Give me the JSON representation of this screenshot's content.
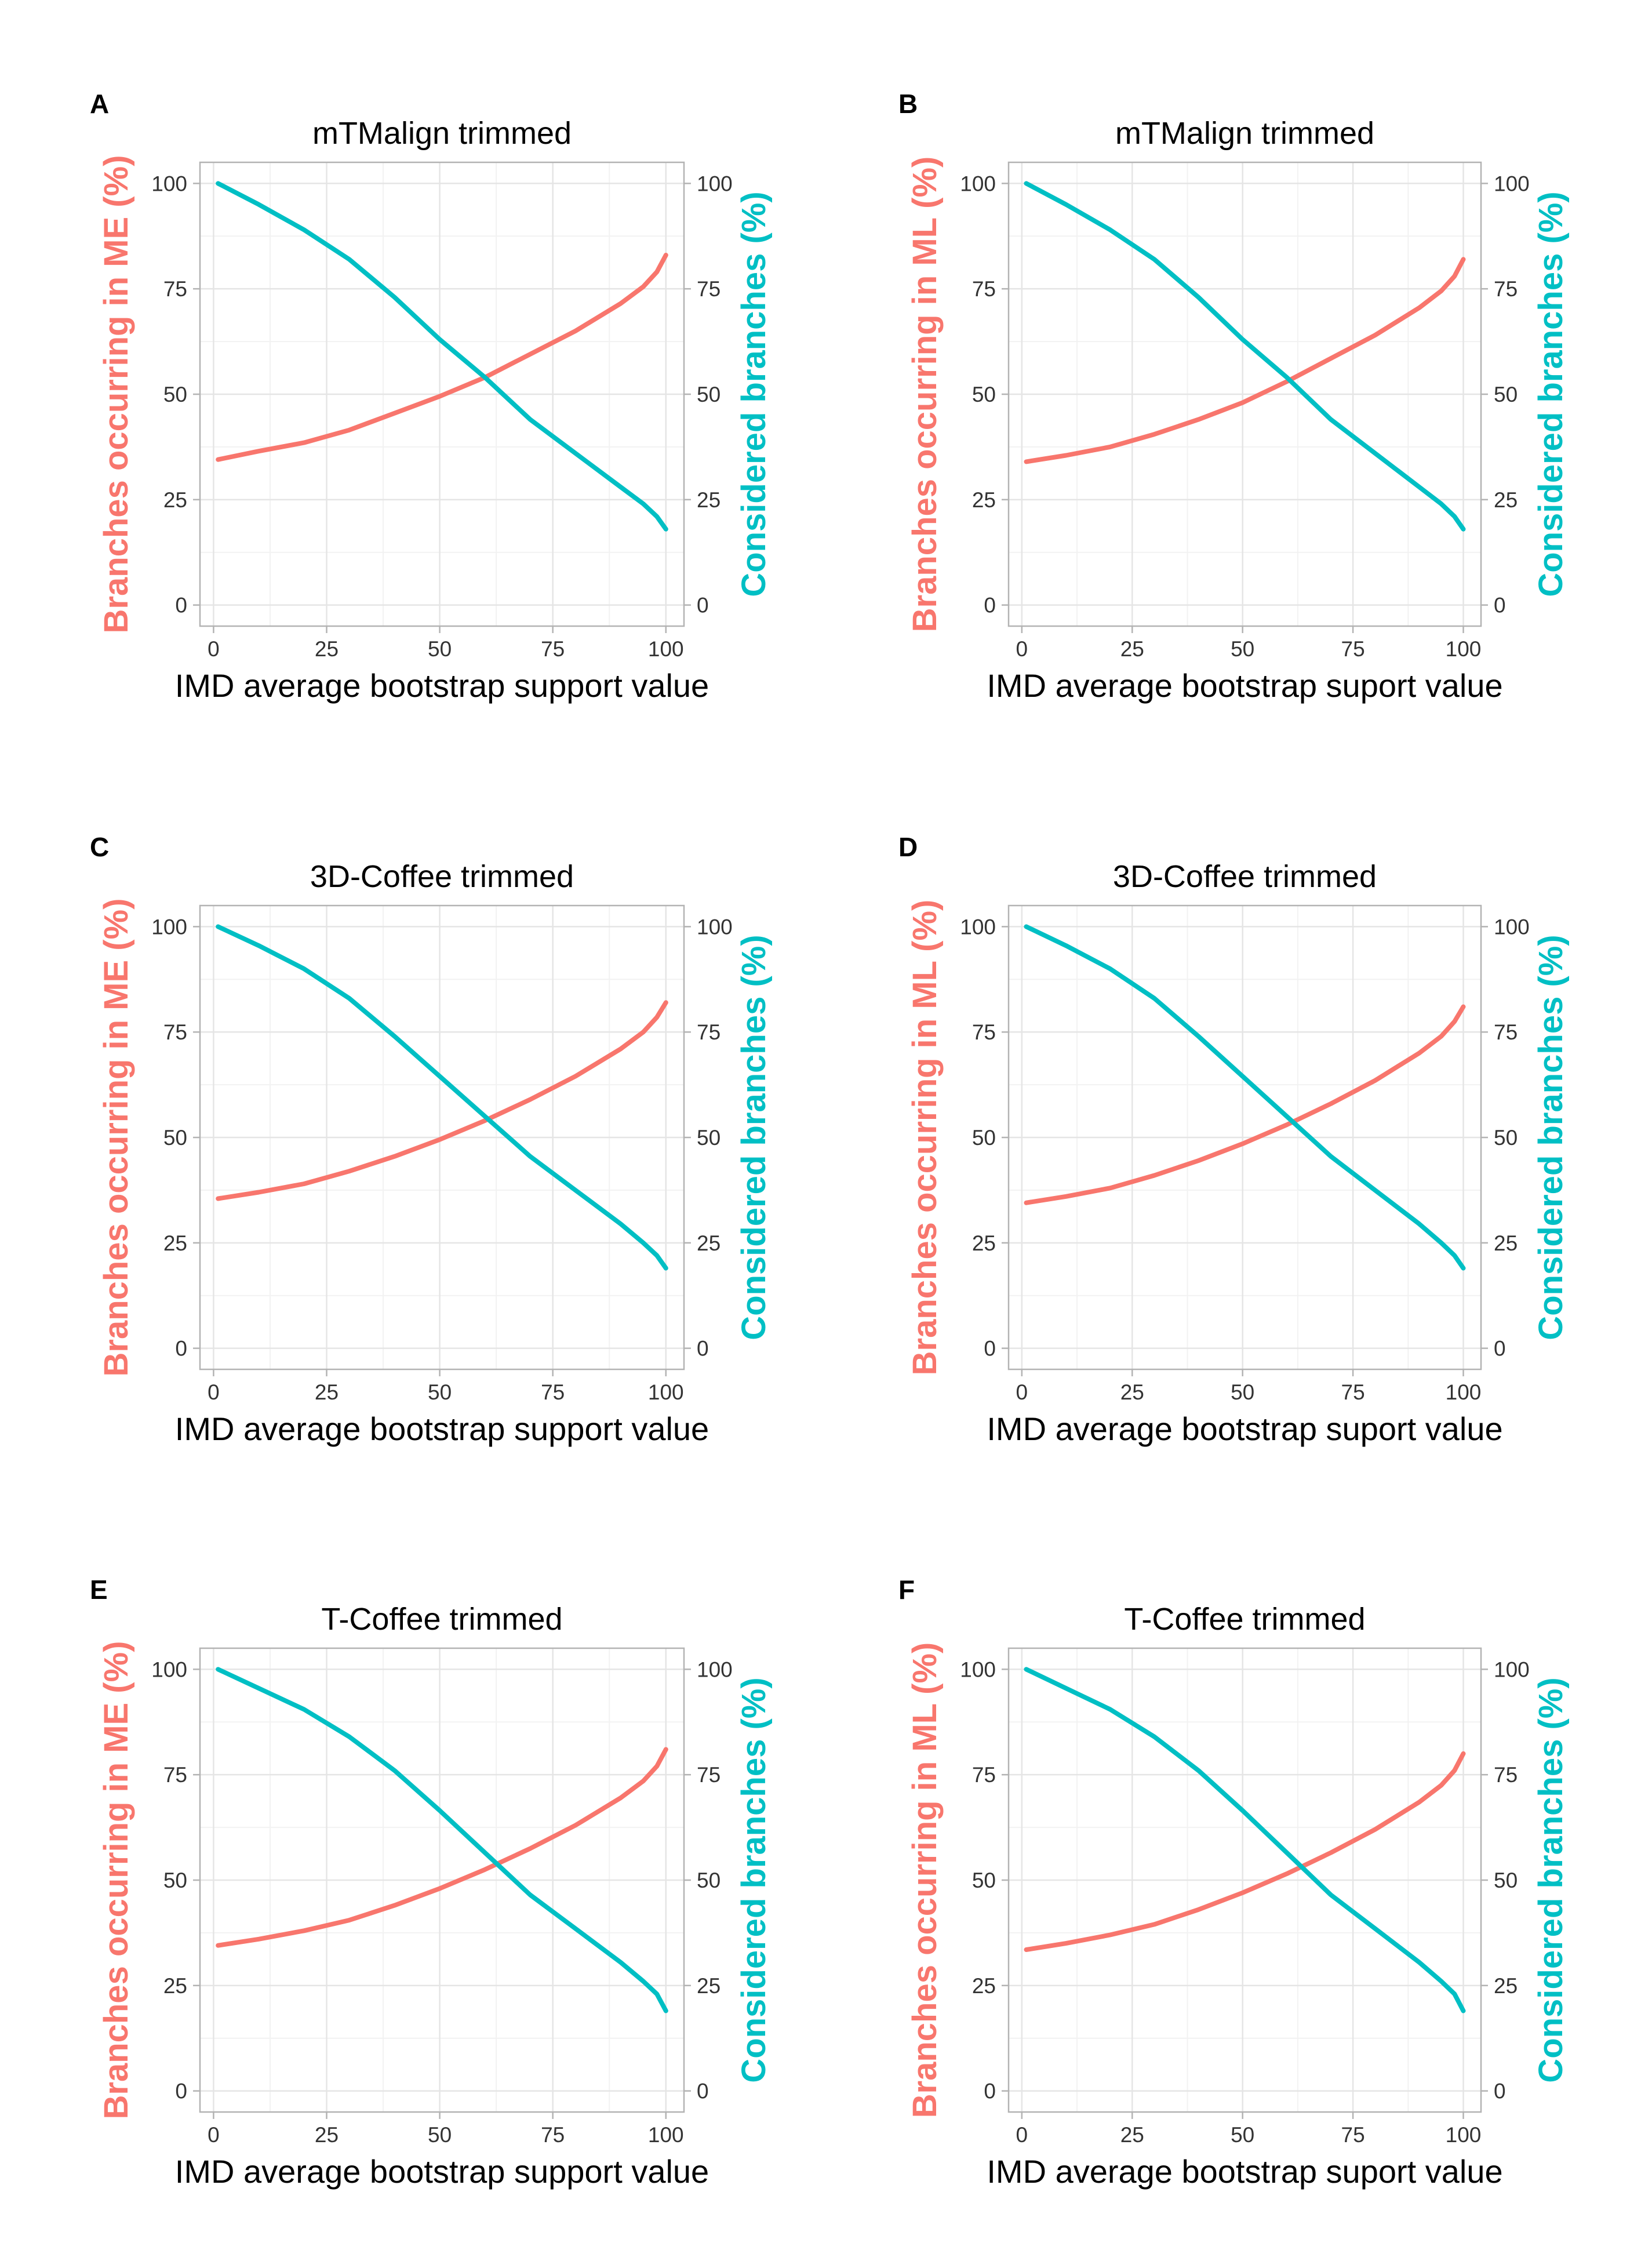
{
  "colors": {
    "left_series": "#F8766D",
    "right_series": "#00BFC4",
    "grid_major": "#E5E5E5",
    "grid_minor": "#F2F2F2",
    "panel_border": "#B3B3B3",
    "text": "#000000",
    "tick_text": "#333333"
  },
  "chart_data": [
    {
      "type": "line",
      "panel_letter": "A",
      "title": "mTMalign trimmed",
      "xlabel": "IMD average bootstrap support value",
      "ylabel_left": "Branches occurring in ME (%)",
      "ylabel_right": "Considered branches (%)",
      "xlim": [
        -3,
        104
      ],
      "ylim": [
        -5,
        105
      ],
      "x_ticks": [
        "0",
        "25",
        "50",
        "75",
        "100"
      ],
      "y_ticks_left": [
        "0",
        "25",
        "50",
        "75",
        "100"
      ],
      "y_ticks_right": [
        "0",
        "25",
        "50",
        "75",
        "100"
      ],
      "grid": true,
      "x": [
        1,
        10,
        20,
        30,
        40,
        50,
        60,
        70,
        80,
        90,
        95,
        98,
        100
      ],
      "series": [
        {
          "values": [
            34.5,
            36.5,
            38.5,
            41.5,
            45.5,
            49.5,
            54,
            59.5,
            65,
            71.5,
            75.5,
            79,
            83
          ]
        },
        {
          "values": [
            100,
            95,
            89,
            82,
            73,
            63,
            54,
            44,
            36,
            28,
            24,
            21,
            18
          ]
        }
      ]
    },
    {
      "type": "line",
      "panel_letter": "B",
      "title": "mTMalign trimmed",
      "xlabel": "IMD average bootstrap suport value",
      "ylabel_left": "Branches occurring in ML (%)",
      "ylabel_right": "Considered branches (%)",
      "xlim": [
        -3,
        104
      ],
      "ylim": [
        -5,
        105
      ],
      "x_ticks": [
        "0",
        "25",
        "50",
        "75",
        "100"
      ],
      "y_ticks_left": [
        "0",
        "25",
        "50",
        "75",
        "100"
      ],
      "y_ticks_right": [
        "0",
        "25",
        "50",
        "75",
        "100"
      ],
      "grid": true,
      "x": [
        1,
        10,
        20,
        30,
        40,
        50,
        60,
        70,
        80,
        90,
        95,
        98,
        100
      ],
      "series": [
        {
          "values": [
            34,
            35.5,
            37.5,
            40.5,
            44,
            48,
            53,
            58.5,
            64,
            70.5,
            74.5,
            78,
            82
          ]
        },
        {
          "values": [
            100,
            95,
            89,
            82,
            73,
            63,
            54,
            44,
            36,
            28,
            24,
            21,
            18
          ]
        }
      ]
    },
    {
      "type": "line",
      "panel_letter": "C",
      "title": "3D-Coffee trimmed",
      "xlabel": "IMD average bootstrap support value",
      "ylabel_left": "Branches occurring in ME (%)",
      "ylabel_right": "Considered branches (%)",
      "xlim": [
        -3,
        104
      ],
      "ylim": [
        -5,
        105
      ],
      "x_ticks": [
        "0",
        "25",
        "50",
        "75",
        "100"
      ],
      "y_ticks_left": [
        "0",
        "25",
        "50",
        "75",
        "100"
      ],
      "y_ticks_right": [
        "0",
        "25",
        "50",
        "75",
        "100"
      ],
      "grid": true,
      "x": [
        1,
        10,
        20,
        30,
        40,
        50,
        60,
        70,
        80,
        90,
        95,
        98,
        100
      ],
      "series": [
        {
          "values": [
            35.5,
            37,
            39,
            42,
            45.5,
            49.5,
            54,
            59,
            64.5,
            71,
            75,
            78.5,
            82
          ]
        },
        {
          "values": [
            100,
            95.5,
            90,
            83,
            74,
            64.5,
            55,
            45.5,
            37.5,
            29.5,
            25,
            22,
            19
          ]
        }
      ]
    },
    {
      "type": "line",
      "panel_letter": "D",
      "title": "3D-Coffee trimmed",
      "xlabel": "IMD average bootstrap suport value",
      "ylabel_left": "Branches occurring in ML (%)",
      "ylabel_right": "Considered branches (%)",
      "xlim": [
        -3,
        104
      ],
      "ylim": [
        -5,
        105
      ],
      "x_ticks": [
        "0",
        "25",
        "50",
        "75",
        "100"
      ],
      "y_ticks_left": [
        "0",
        "25",
        "50",
        "75",
        "100"
      ],
      "y_ticks_right": [
        "0",
        "25",
        "50",
        "75",
        "100"
      ],
      "grid": true,
      "x": [
        1,
        10,
        20,
        30,
        40,
        50,
        60,
        70,
        80,
        90,
        95,
        98,
        100
      ],
      "series": [
        {
          "values": [
            34.5,
            36,
            38,
            41,
            44.5,
            48.5,
            53,
            58,
            63.5,
            70,
            74,
            77.5,
            81
          ]
        },
        {
          "values": [
            100,
            95.5,
            90,
            83,
            74,
            64.5,
            55,
            45.5,
            37.5,
            29.5,
            25,
            22,
            19
          ]
        }
      ]
    },
    {
      "type": "line",
      "panel_letter": "E",
      "title": "T-Coffee trimmed",
      "xlabel": "IMD average bootstrap support value",
      "ylabel_left": "Branches occurring in ME (%)",
      "ylabel_right": "Considered branches (%)",
      "xlim": [
        -3,
        104
      ],
      "ylim": [
        -5,
        105
      ],
      "x_ticks": [
        "0",
        "25",
        "50",
        "75",
        "100"
      ],
      "y_ticks_left": [
        "0",
        "25",
        "50",
        "75",
        "100"
      ],
      "y_ticks_right": [
        "0",
        "25",
        "50",
        "75",
        "100"
      ],
      "grid": true,
      "x": [
        1,
        10,
        20,
        30,
        40,
        50,
        60,
        70,
        80,
        90,
        95,
        98,
        100
      ],
      "series": [
        {
          "values": [
            34.5,
            36,
            38,
            40.5,
            44,
            48,
            52.5,
            57.5,
            63,
            69.5,
            73.5,
            77,
            81
          ]
        },
        {
          "values": [
            100,
            95.5,
            90.5,
            84,
            76,
            66.5,
            56.5,
            46.5,
            38.5,
            30.5,
            26,
            23,
            19
          ]
        }
      ]
    },
    {
      "type": "line",
      "panel_letter": "F",
      "title": "T-Coffee trimmed",
      "xlabel": "IMD average bootstrap suport value",
      "ylabel_left": "Branches occurring in ML (%)",
      "ylabel_right": "Considered branches (%)",
      "xlim": [
        -3,
        104
      ],
      "ylim": [
        -5,
        105
      ],
      "x_ticks": [
        "0",
        "25",
        "50",
        "75",
        "100"
      ],
      "y_ticks_left": [
        "0",
        "25",
        "50",
        "75",
        "100"
      ],
      "y_ticks_right": [
        "0",
        "25",
        "50",
        "75",
        "100"
      ],
      "grid": true,
      "x": [
        1,
        10,
        20,
        30,
        40,
        50,
        60,
        70,
        80,
        90,
        95,
        98,
        100
      ],
      "series": [
        {
          "values": [
            33.5,
            35,
            37,
            39.5,
            43,
            47,
            51.5,
            56.5,
            62,
            68.5,
            72.5,
            76,
            80
          ]
        },
        {
          "values": [
            100,
            95.5,
            90.5,
            84,
            76,
            66.5,
            56.5,
            46.5,
            38.5,
            30.5,
            26,
            23,
            19
          ]
        }
      ]
    }
  ]
}
